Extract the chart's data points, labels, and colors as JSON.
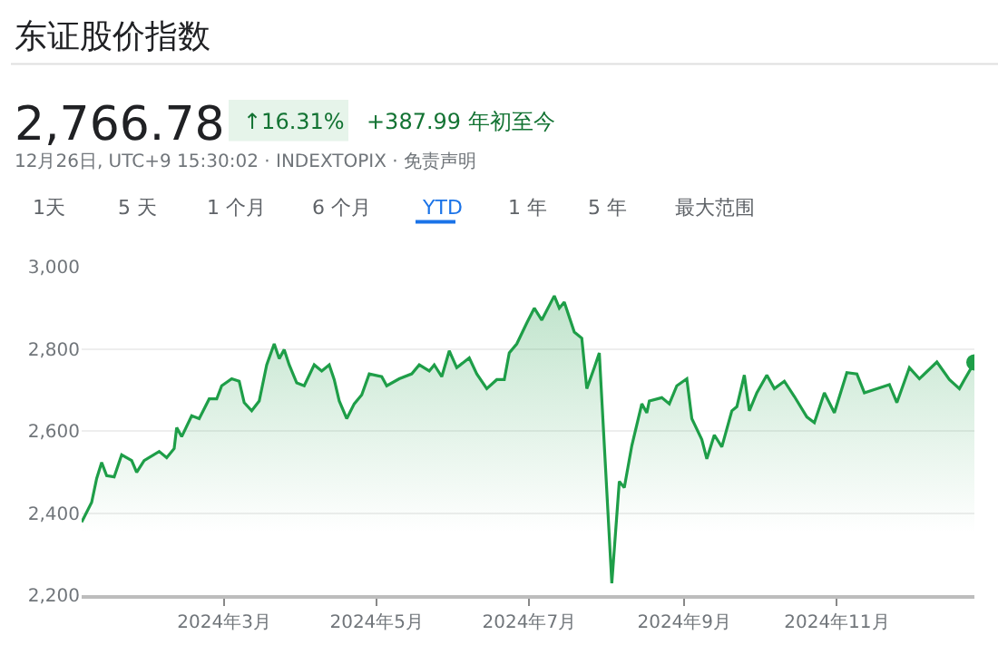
{
  "chart_data": {
    "type": "area",
    "title": "东证股价指数",
    "subtitle": "12月26日, UTC+9 15:30:02 · INDEXTOPIX · 免责声明",
    "annotations": [
      "2,766.78",
      "↑16.31%",
      "+387.99 年初至今",
      "1天",
      "5 天",
      "1 个月",
      "6 个月",
      "YTD",
      "1 年",
      "5 年",
      "最大范围"
    ],
    "x": [
      "2024-01-04",
      "2024-01-08",
      "2024-01-10",
      "2024-01-12",
      "2024-01-14",
      "2024-01-17",
      "2024-01-20",
      "2024-01-24",
      "2024-01-26",
      "2024-01-29",
      "2024-02-04",
      "2024-02-07",
      "2024-02-10",
      "2024-02-11",
      "2024-02-13",
      "2024-02-17",
      "2024-02-20",
      "2024-02-24",
      "2024-02-27",
      "2024-02-29",
      "2024-03-04",
      "2024-03-07",
      "2024-03-09",
      "2024-03-12",
      "2024-03-15",
      "2024-03-18",
      "2024-03-21",
      "2024-03-23",
      "2024-03-25",
      "2024-03-27",
      "2024-03-30",
      "2024-04-02",
      "2024-04-06",
      "2024-04-09",
      "2024-04-12",
      "2024-04-14",
      "2024-04-16",
      "2024-04-19",
      "2024-04-22",
      "2024-04-25",
      "2024-04-28",
      "2024-05-03",
      "2024-05-05",
      "2024-05-10",
      "2024-05-15",
      "2024-05-18",
      "2024-05-22",
      "2024-05-24",
      "2024-05-27",
      "2024-05-30",
      "2024-06-02",
      "2024-06-07",
      "2024-06-10",
      "2024-06-14",
      "2024-06-18",
      "2024-06-21",
      "2024-06-23",
      "2024-06-26",
      "2024-06-30",
      "2024-07-03",
      "2024-07-06",
      "2024-07-11",
      "2024-07-13",
      "2024-07-15",
      "2024-07-19",
      "2024-07-22",
      "2024-07-24",
      "2024-07-27",
      "2024-07-29",
      "2024-08-03",
      "2024-08-06",
      "2024-08-08",
      "2024-08-11",
      "2024-08-15",
      "2024-08-17",
      "2024-08-18",
      "2024-08-23",
      "2024-08-26",
      "2024-08-29",
      "2024-09-02",
      "2024-09-04",
      "2024-09-08",
      "2024-09-10",
      "2024-09-13",
      "2024-09-16",
      "2024-09-20",
      "2024-09-22",
      "2024-09-25",
      "2024-09-27",
      "2024-09-30",
      "2024-10-04",
      "2024-10-07",
      "2024-10-11",
      "2024-10-15",
      "2024-10-20",
      "2024-10-23",
      "2024-10-27",
      "2024-10-31",
      "2024-11-05",
      "2024-11-09",
      "2024-11-12",
      "2024-11-17",
      "2024-11-22",
      "2024-11-25",
      "2024-11-30",
      "2024-12-04",
      "2024-12-11",
      "2024-12-16",
      "2024-12-20",
      "2024-12-22",
      "2024-12-26"
    ],
    "series": [
      {
        "color": "#1e9e48",
        "values": [
          2378,
          2426,
          2484,
          2523,
          2491,
          2488,
          2542,
          2528,
          2499,
          2528,
          2550,
          2535,
          2557,
          2608,
          2586,
          2637,
          2630,
          2678,
          2678,
          2710,
          2727,
          2721,
          2669,
          2649,
          2673,
          2761,
          2812,
          2776,
          2798,
          2761,
          2717,
          2710,
          2761,
          2746,
          2761,
          2725,
          2673,
          2630,
          2666,
          2688,
          2739,
          2732,
          2710,
          2727,
          2739,
          2761,
          2746,
          2761,
          2732,
          2795,
          2754,
          2778,
          2739,
          2703,
          2725,
          2725,
          2790,
          2812,
          2863,
          2899,
          2870,
          2929,
          2899,
          2914,
          2841,
          2826,
          2703,
          2754,
          2790,
          2229,
          2477,
          2462,
          2564,
          2666,
          2644,
          2673,
          2681,
          2666,
          2710,
          2727,
          2630,
          2579,
          2532,
          2590,
          2561,
          2649,
          2659,
          2736,
          2649,
          2693,
          2736,
          2703,
          2721,
          2684,
          2634,
          2620,
          2693,
          2644,
          2742,
          2739,
          2693,
          2703,
          2713,
          2669,
          2754,
          2727,
          2768,
          2725,
          2703,
          2725,
          2767
        ]
      }
    ],
    "xlim": [
      "2024-01-04",
      "2024-12-26"
    ],
    "xticks": [
      {
        "value": "2024-03-01",
        "label": "2024年3月"
      },
      {
        "value": "2024-05-01",
        "label": "2024年5月"
      },
      {
        "value": "2024-07-01",
        "label": "2024年7月"
      },
      {
        "value": "2024-09-01",
        "label": "2024年9月"
      },
      {
        "value": "2024-11-01",
        "label": "2024年11月"
      }
    ],
    "ylim": [
      2200,
      3000
    ],
    "yticks": [
      {
        "value": 2200,
        "label": "2,200"
      },
      {
        "value": 2400,
        "label": "2,400"
      },
      {
        "value": 2600,
        "label": "2,600"
      },
      {
        "value": 2800,
        "label": "2,800"
      },
      {
        "value": 3000,
        "label": "3,000"
      }
    ],
    "grid": "y",
    "legend": false
  }
}
